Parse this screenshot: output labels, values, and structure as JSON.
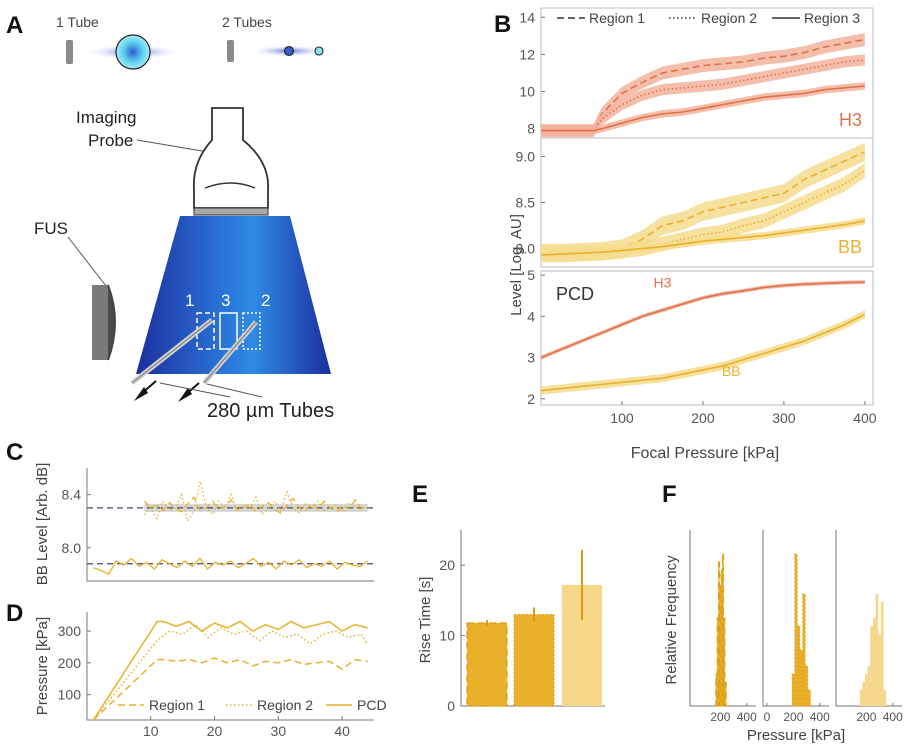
{
  "colors": {
    "h3": "#e0714a",
    "h3_band": "#f2b39c",
    "bb": "#eab02a",
    "bb_band": "#f6dc8e",
    "bar_light": "#f6d78a",
    "cone_dark": "#1a2fa0",
    "cone_light": "#2f8be6",
    "dash_ref": "#3d4a6a",
    "gray_band": "#d6d6d6"
  },
  "panel_a": {
    "label": "A",
    "tube1_label": "1 Tube",
    "tube2_label": "2 Tubes",
    "probe_label_line1": "Imaging",
    "probe_label_line2": "Probe",
    "fus_label": "FUS",
    "region_numbers": [
      "1",
      "3",
      "2"
    ],
    "tubes_label": "280 µm Tubes",
    "icons": [
      "transducer-icon",
      "bubble-icon",
      "ultrasound-probe-icon",
      "arrow-icon"
    ]
  },
  "panel_b": {
    "label": "B",
    "x_axis_label": "Focal Pressure [kPa]",
    "y_axis_label": "Level [Log. AU]"
  },
  "panel_c": {
    "label": "C"
  },
  "panel_d": {
    "label": "D"
  },
  "panel_e": {
    "label": "E"
  },
  "panel_f": {
    "label": "F"
  },
  "chart_data": [
    {
      "id": "B-H3",
      "type": "line",
      "panel_label": "H3",
      "legend": [
        "Region 1",
        "Region 2",
        "Region 3"
      ],
      "legend_styles": [
        "dashed",
        "dotted",
        "solid"
      ],
      "legend_placement": "top",
      "x": [
        0,
        25,
        50,
        65,
        75,
        100,
        125,
        150,
        175,
        200,
        225,
        250,
        275,
        300,
        325,
        350,
        375,
        400
      ],
      "series": [
        {
          "name": "Region 1",
          "style": "dashed",
          "values": [
            7.9,
            7.9,
            7.9,
            7.9,
            8.8,
            9.9,
            10.5,
            11.0,
            11.2,
            11.4,
            11.5,
            11.6,
            11.8,
            11.9,
            12.1,
            12.4,
            12.6,
            12.8
          ],
          "band": 0.35
        },
        {
          "name": "Region 2",
          "style": "dotted",
          "values": [
            7.9,
            7.9,
            7.9,
            7.9,
            8.5,
            9.3,
            9.8,
            10.1,
            10.2,
            10.3,
            10.4,
            10.6,
            10.8,
            11.0,
            11.2,
            11.4,
            11.6,
            11.7
          ],
          "band": 0.3
        },
        {
          "name": "Region 3",
          "style": "solid",
          "values": [
            7.9,
            7.9,
            7.9,
            7.9,
            8.0,
            8.3,
            8.6,
            8.8,
            8.9,
            9.1,
            9.3,
            9.5,
            9.7,
            9.8,
            9.9,
            10.1,
            10.2,
            10.3
          ],
          "band": 0.2
        }
      ],
      "y_ticks": [
        8,
        10,
        12,
        14
      ],
      "ylim": [
        7.5,
        14.5
      ],
      "xlim": [
        0,
        410
      ]
    },
    {
      "id": "B-BB",
      "type": "line",
      "panel_label": "BB",
      "x": [
        0,
        25,
        50,
        75,
        100,
        125,
        150,
        175,
        200,
        225,
        250,
        275,
        300,
        325,
        350,
        375,
        400
      ],
      "series": [
        {
          "name": "Region 1",
          "style": "dashed",
          "values": [
            7.95,
            7.95,
            7.96,
            7.97,
            8.0,
            8.1,
            8.25,
            8.3,
            8.4,
            8.45,
            8.5,
            8.55,
            8.6,
            8.75,
            8.85,
            8.95,
            9.05
          ],
          "band": 0.1
        },
        {
          "name": "Region 2",
          "style": "dotted",
          "values": [
            7.95,
            7.95,
            7.95,
            7.95,
            7.97,
            8.0,
            8.05,
            8.1,
            8.15,
            8.18,
            8.25,
            8.3,
            8.4,
            8.5,
            8.6,
            8.7,
            8.85
          ],
          "band": 0.08
        },
        {
          "name": "Region 3",
          "style": "solid",
          "values": [
            7.93,
            7.94,
            7.95,
            7.96,
            7.98,
            8.0,
            8.02,
            8.05,
            8.08,
            8.1,
            8.12,
            8.14,
            8.17,
            8.2,
            8.23,
            8.26,
            8.3
          ],
          "band": 0.04
        }
      ],
      "y_ticks": [
        8.0,
        8.5,
        9.0
      ],
      "y_tick_labels": [
        "8.0",
        "8.5",
        "9.0"
      ],
      "ylim": [
        7.8,
        9.2
      ],
      "xlim": [
        0,
        410
      ]
    },
    {
      "id": "B-PCD",
      "type": "line",
      "panel_label": "PCD",
      "x": [
        0,
        25,
        50,
        75,
        100,
        125,
        150,
        175,
        200,
        225,
        250,
        275,
        300,
        325,
        350,
        375,
        400
      ],
      "series": [
        {
          "name": "H3",
          "style": "solid",
          "values": [
            3.0,
            3.2,
            3.4,
            3.6,
            3.8,
            4.0,
            4.15,
            4.3,
            4.45,
            4.55,
            4.62,
            4.7,
            4.75,
            4.78,
            4.8,
            4.82,
            4.83
          ],
          "band": 0.05
        },
        {
          "name": "BB",
          "style": "solid",
          "values": [
            2.2,
            2.25,
            2.3,
            2.35,
            2.4,
            2.45,
            2.5,
            2.6,
            2.7,
            2.8,
            2.95,
            3.1,
            3.25,
            3.4,
            3.6,
            3.8,
            4.05
          ],
          "band": 0.1
        }
      ],
      "y_ticks": [
        2,
        3,
        4,
        5
      ],
      "ylim": [
        1.85,
        5.1
      ],
      "x_ticks": [
        100,
        200,
        300,
        400
      ],
      "xlim": [
        0,
        410
      ]
    },
    {
      "id": "C",
      "type": "line",
      "y_axis_label": "BB Level [Arb. dB]",
      "y_ticks": [
        8.0,
        8.4
      ],
      "y_tick_labels": [
        "8.0",
        "8.4"
      ],
      "ylim": [
        7.75,
        8.6
      ],
      "xlim": [
        0,
        45
      ],
      "reference_lines": [
        8.3,
        7.88
      ],
      "series": [
        {
          "name": "Region 1",
          "style": "dashed",
          "values": [
            8.35,
            8.3,
            8.32,
            8.28,
            8.34,
            8.3,
            8.27,
            8.33,
            8.38,
            8.28,
            8.3,
            8.35,
            8.29,
            8.31,
            8.36,
            8.28,
            8.3,
            8.33,
            8.27,
            8.31,
            8.34,
            8.29,
            8.26,
            8.32,
            8.37,
            8.3,
            8.28,
            8.33,
            8.29,
            8.35,
            8.3,
            8.27,
            8.32,
            8.29,
            8.36,
            8.3,
            8.28
          ]
        },
        {
          "name": "Region 2",
          "style": "dotted",
          "values": [
            8.25,
            8.3,
            8.22,
            8.35,
            8.28,
            8.3,
            8.4,
            8.2,
            8.28,
            8.5,
            8.3,
            8.25,
            8.35,
            8.3,
            8.4,
            8.28,
            8.32,
            8.3,
            8.38,
            8.25,
            8.3,
            8.35,
            8.28,
            8.42,
            8.3,
            8.26,
            8.33,
            8.3,
            8.35,
            8.28,
            8.3,
            8.32,
            8.27,
            8.34,
            8.3,
            8.29,
            8.31
          ]
        },
        {
          "name": "PCD",
          "style": "solid",
          "values": [
            7.85,
            7.83,
            7.8,
            7.9,
            7.87,
            7.92,
            7.86,
            7.89,
            7.84,
            7.91,
            7.88,
            7.85,
            7.9,
            7.86,
            7.92,
            7.84,
            7.89,
            7.87,
            7.9,
            7.85,
            7.88,
            7.92,
            7.86,
            7.89,
            7.84,
            7.9,
            7.87,
            7.91,
            7.85,
            7.88,
            7.86,
            7.9,
            7.84,
            7.89,
            7.87,
            7.86,
            7.9
          ]
        }
      ]
    },
    {
      "id": "D",
      "type": "line",
      "y_axis_label": "Pressure [kPa]",
      "y_ticks": [
        100,
        200,
        300
      ],
      "ylim": [
        20,
        360
      ],
      "x_ticks": [
        10,
        20,
        30,
        40
      ],
      "xlim": [
        0,
        45
      ],
      "legend": [
        "Region 1",
        "Region 2",
        "PCD"
      ],
      "legend_styles": [
        "dashed",
        "dotted",
        "solid"
      ],
      "series": [
        {
          "name": "Region 1",
          "style": "dashed",
          "x": [
            1,
            11,
            12,
            14,
            16,
            18,
            20,
            22,
            24,
            26,
            28,
            30,
            32,
            34,
            36,
            38,
            40,
            42,
            44
          ],
          "values": [
            20,
            210,
            210,
            205,
            210,
            200,
            215,
            200,
            210,
            190,
            205,
            200,
            210,
            195,
            200,
            205,
            180,
            210,
            205
          ]
        },
        {
          "name": "Region 2",
          "style": "dotted",
          "x": [
            1,
            11,
            13,
            15,
            17,
            19,
            21,
            23,
            25,
            27,
            29,
            31,
            33,
            35,
            37,
            39,
            41,
            43,
            44
          ],
          "values": [
            20,
            270,
            300,
            290,
            320,
            280,
            310,
            290,
            300,
            270,
            300,
            280,
            290,
            260,
            290,
            300,
            280,
            290,
            260
          ]
        },
        {
          "name": "PCD",
          "style": "solid",
          "x": [
            1,
            11,
            12,
            14,
            16,
            18,
            20,
            22,
            24,
            26,
            28,
            30,
            32,
            34,
            36,
            38,
            40,
            42,
            44
          ],
          "values": [
            20,
            330,
            330,
            315,
            330,
            300,
            325,
            310,
            330,
            300,
            320,
            305,
            330,
            310,
            320,
            330,
            300,
            320,
            310
          ]
        }
      ]
    },
    {
      "id": "E",
      "type": "bar",
      "y_axis_label": "Rise Time [s]",
      "y_ticks": [
        0,
        10,
        20
      ],
      "ylim": [
        0,
        25
      ],
      "values": [
        11.8,
        13.0,
        17.2
      ],
      "errors": [
        0.4,
        1.0,
        5.0
      ],
      "bar_styles": [
        "dashed",
        "dotted",
        "solid"
      ]
    },
    {
      "id": "F",
      "type": "bar",
      "y_axis_label": "Relative Frequency",
      "x_axis_label": "Pressure [kPa]",
      "x_ticks": [
        0,
        200,
        400
      ],
      "subplots": [
        {
          "style": "dashed",
          "x_ticks": [
            200,
            400
          ],
          "bins": [
            170,
            180,
            190,
            200,
            210,
            220,
            230,
            240
          ],
          "counts": [
            0.2,
            0.55,
            0.9,
            0.75,
            0.85,
            0.95,
            0.55,
            0.15
          ]
        },
        {
          "style": "dotted",
          "x_ticks": [
            0,
            200,
            400
          ],
          "bins": [
            200,
            220,
            240,
            260,
            280,
            300,
            320
          ],
          "counts": [
            0.2,
            0.95,
            0.5,
            0.35,
            0.7,
            0.25,
            0.1
          ]
        },
        {
          "style": "solid",
          "x_ticks": [
            200,
            400
          ],
          "bins": [
            160,
            180,
            200,
            220,
            240,
            260,
            280,
            300,
            320,
            340
          ],
          "counts": [
            0.1,
            0.15,
            0.2,
            0.25,
            0.5,
            0.55,
            0.7,
            0.45,
            0.65,
            0.1
          ]
        }
      ]
    }
  ]
}
